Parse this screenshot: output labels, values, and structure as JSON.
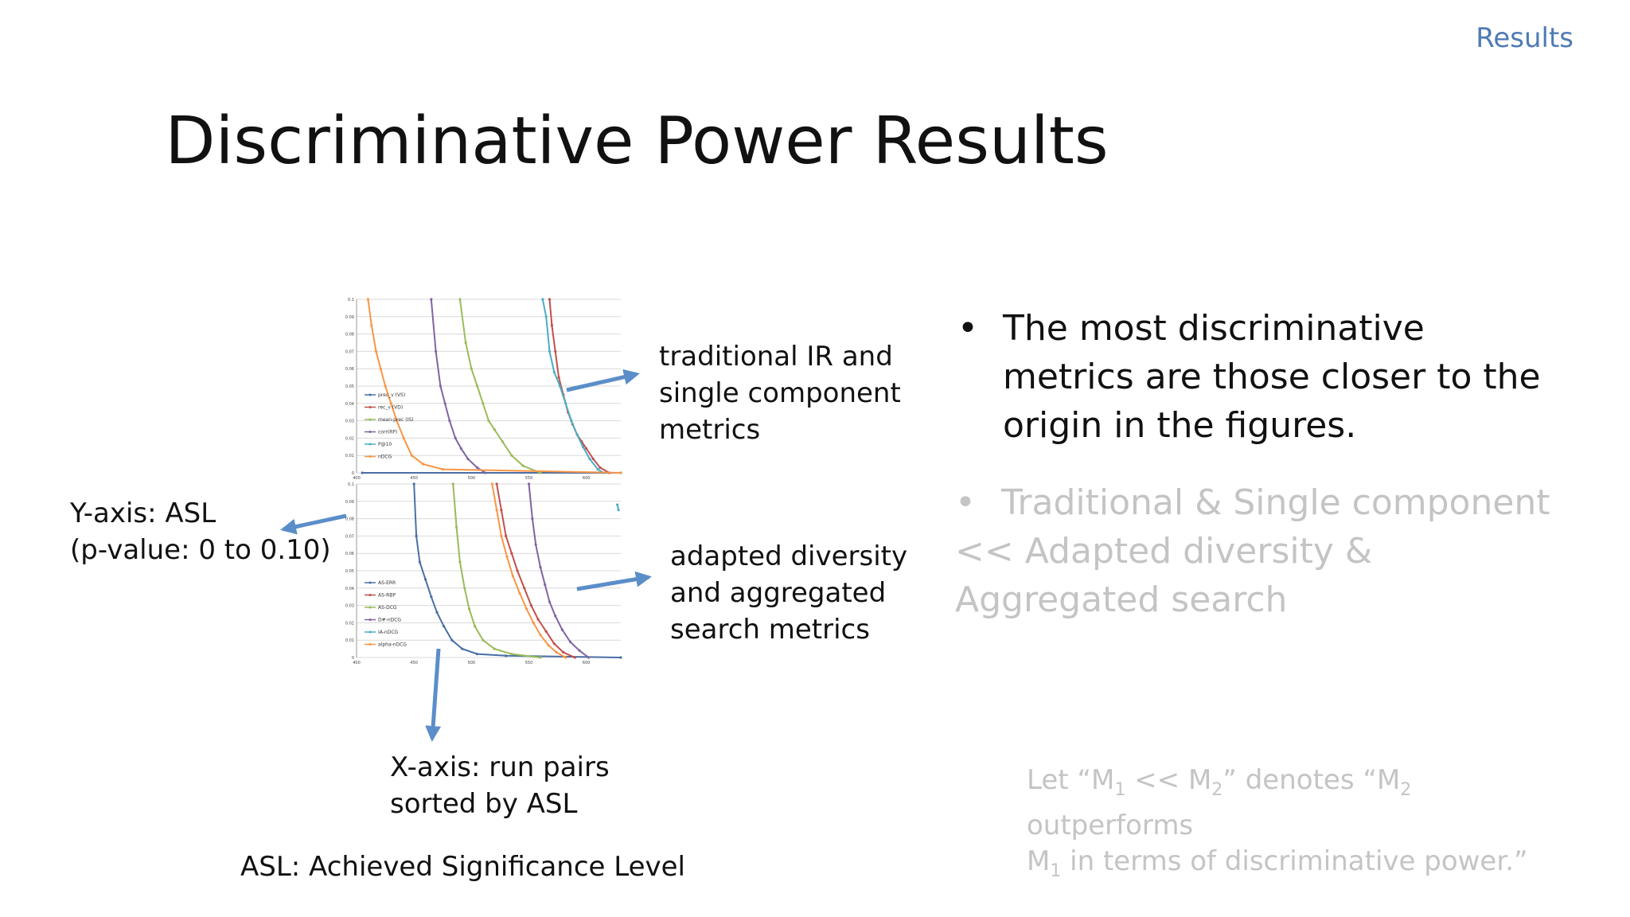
{
  "section_label": "Results",
  "title": "Discriminative Power Results",
  "annotations": {
    "traditional": [
      "traditional IR and",
      "single component",
      "metrics"
    ],
    "adapted": [
      "adapted diversity",
      "and aggregated",
      "search metrics"
    ],
    "y_axis": [
      "Y-axis: ASL",
      "(p-value: 0 to 0.10)"
    ],
    "x_axis": [
      "X-axis: run pairs",
      "sorted by ASL"
    ],
    "asl": "ASL: Achieved Significance Level"
  },
  "bullets": [
    "The most discriminative metrics are those closer to the origin in the figures.",
    "Traditional & Single component << Adapted diversity & Aggregated search"
  ],
  "note": {
    "line1_a": "Let “M",
    "line1_sub1": "1",
    "line1_b": " << M",
    "line1_sub2": "2",
    "line1_c": "” denotes “M",
    "line1_sub3": "2",
    "line1_d": " outperforms",
    "line2_a": "M",
    "line2_sub": "1",
    "line2_b": " in terms of discriminative power.”"
  },
  "chart_data": [
    {
      "type": "line",
      "x_ticks": [
        "400",
        "450",
        "500",
        "550",
        "600"
      ],
      "y_ticks": [
        "0",
        "0.01",
        "0.02",
        "0.03",
        "0.04",
        "0.05",
        "0.06",
        "0.07",
        "0.08",
        "0.09",
        "0.1"
      ],
      "xlim": [
        400,
        630
      ],
      "ylim": [
        0,
        0.1
      ],
      "legend_position": "left",
      "series": [
        {
          "name": "prec_v (VS)",
          "color": "#4a6fa5",
          "x": [
            405,
            630
          ],
          "y": [
            0,
            0
          ]
        },
        {
          "name": "rec_v (VD)",
          "color": "#c0504d",
          "x": [
            568,
            570,
            573,
            576,
            580,
            584,
            588,
            592,
            596,
            600,
            606,
            612,
            620
          ],
          "y": [
            0.1,
            0.085,
            0.07,
            0.055,
            0.045,
            0.035,
            0.028,
            0.022,
            0.018,
            0.014,
            0.008,
            0.003,
            0
          ]
        },
        {
          "name": "mean-prec (IS)",
          "color": "#9bbb59",
          "x": [
            490,
            495,
            500,
            505,
            510,
            515,
            520,
            527,
            535,
            545,
            560
          ],
          "y": [
            0.1,
            0.075,
            0.06,
            0.05,
            0.04,
            0.03,
            0.025,
            0.018,
            0.01,
            0.004,
            0
          ]
        },
        {
          "name": "corr(RP)",
          "color": "#8064a2",
          "x": [
            465,
            469,
            473,
            477,
            481,
            486,
            491,
            497,
            505,
            512
          ],
          "y": [
            0.1,
            0.07,
            0.05,
            0.04,
            0.03,
            0.02,
            0.014,
            0.008,
            0.003,
            0
          ]
        },
        {
          "name": "P@10",
          "color": "#4bacc6",
          "x": [
            562,
            565,
            568,
            572,
            577,
            582,
            587,
            592,
            597,
            603,
            610,
            615
          ],
          "y": [
            0.1,
            0.09,
            0.07,
            0.058,
            0.05,
            0.04,
            0.03,
            0.022,
            0.015,
            0.008,
            0.002,
            0
          ]
        },
        {
          "name": "nDCG",
          "color": "#f79646",
          "x": [
            410,
            413,
            417,
            421,
            425,
            430,
            435,
            441,
            448,
            458,
            475,
            630
          ],
          "y": [
            0.1,
            0.085,
            0.07,
            0.06,
            0.05,
            0.04,
            0.03,
            0.02,
            0.01,
            0.005,
            0.002,
            0
          ]
        }
      ]
    },
    {
      "type": "line",
      "x_ticks": [
        "400",
        "450",
        "500",
        "550",
        "600"
      ],
      "y_ticks": [
        "0",
        "0.01",
        "0.02",
        "0.03",
        "0.04",
        "0.05",
        "0.06",
        "0.07",
        "0.08",
        "0.09",
        "0.1"
      ],
      "xlim": [
        400,
        630
      ],
      "ylim": [
        0,
        0.1
      ],
      "legend_position": "left",
      "series": [
        {
          "name": "AS-ERR",
          "color": "#4a6fa5",
          "x": [
            450,
            452,
            455,
            460,
            465,
            470,
            476,
            483,
            492,
            505,
            530,
            630
          ],
          "y": [
            0.1,
            0.07,
            0.055,
            0.045,
            0.035,
            0.026,
            0.018,
            0.01,
            0.005,
            0.002,
            0.001,
            0
          ]
        },
        {
          "name": "AS-RBP",
          "color": "#c0504d",
          "x": [
            522,
            526,
            530,
            535,
            540,
            546,
            552,
            558,
            565,
            572,
            580,
            590
          ],
          "y": [
            0.1,
            0.085,
            0.07,
            0.06,
            0.05,
            0.04,
            0.03,
            0.022,
            0.015,
            0.008,
            0.003,
            0
          ]
        },
        {
          "name": "AS-DCG",
          "color": "#9bbb59",
          "x": [
            484,
            487,
            490,
            494,
            498,
            503,
            510,
            520,
            535,
            560
          ],
          "y": [
            0.1,
            0.075,
            0.055,
            0.04,
            0.028,
            0.018,
            0.01,
            0.005,
            0.002,
            0
          ]
        },
        {
          "name": "D#-nDCG",
          "color": "#8064a2",
          "x": [
            550,
            553,
            556,
            560,
            564,
            568,
            573,
            579,
            586,
            594,
            602
          ],
          "y": [
            0.1,
            0.08,
            0.065,
            0.052,
            0.042,
            0.032,
            0.024,
            0.016,
            0.009,
            0.004,
            0
          ]
        },
        {
          "name": "IA-nDCG",
          "color": "#4bacc6",
          "x": [
            627,
            628
          ],
          "y": [
            0.088,
            0.085
          ]
        },
        {
          "name": "alpha-nDCG",
          "color": "#f79646",
          "x": [
            518,
            522,
            526,
            531,
            536,
            542,
            548,
            554,
            560,
            567,
            574,
            582
          ],
          "y": [
            0.1,
            0.085,
            0.07,
            0.058,
            0.047,
            0.037,
            0.028,
            0.02,
            0.013,
            0.007,
            0.003,
            0
          ]
        }
      ]
    }
  ]
}
